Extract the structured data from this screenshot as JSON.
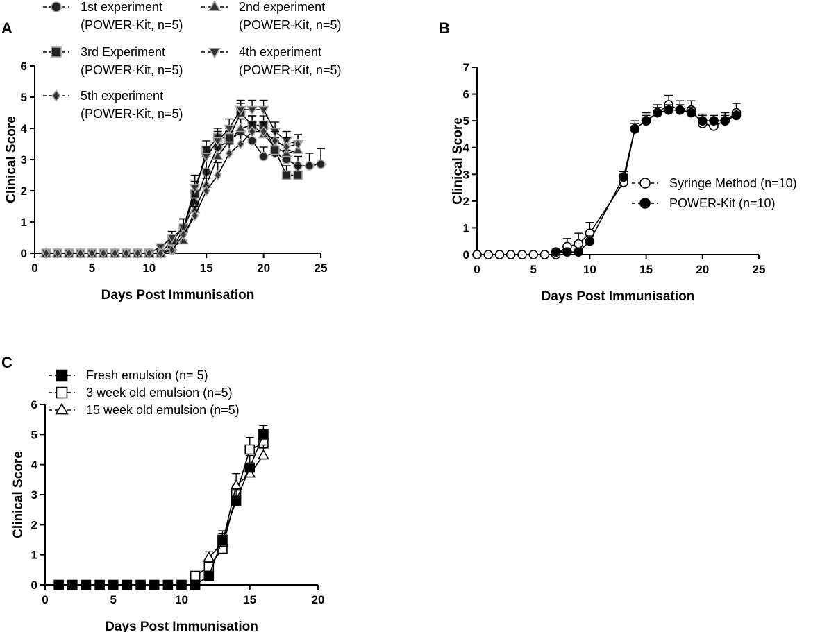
{
  "figure_caption": "",
  "chart_data": [
    {
      "panel": "A",
      "type": "line",
      "title": "",
      "xlabel": "Days Post Immunisation",
      "ylabel": "Clinical Score",
      "xlim": [
        0,
        25
      ],
      "ylim": [
        0,
        6
      ],
      "xticks": [
        0,
        5,
        10,
        15,
        20,
        25
      ],
      "yticks": [
        0,
        1,
        2,
        3,
        4,
        5,
        6
      ],
      "grid": false,
      "legend_position": "top-left",
      "series": [
        {
          "name": "1st experiment",
          "name2": "(POWER-Kit, n=5)",
          "marker": "circle",
          "fill": "#222222",
          "x": [
            1,
            2,
            3,
            4,
            5,
            6,
            7,
            8,
            9,
            10,
            11,
            12,
            13,
            14,
            15,
            16,
            17,
            18,
            19,
            20,
            21,
            22,
            23,
            24,
            25
          ],
          "values": [
            0,
            0,
            0,
            0,
            0,
            0,
            0,
            0,
            0,
            0,
            0,
            0.1,
            0.8,
            1.6,
            2.6,
            3.4,
            3.6,
            3.9,
            3.6,
            3.1,
            3.2,
            3.0,
            2.8,
            2.8,
            2.85
          ],
          "err": [
            0,
            0,
            0,
            0,
            0,
            0,
            0,
            0,
            0,
            0,
            0,
            0.1,
            0.3,
            0.4,
            0.5,
            0.4,
            0.3,
            0.4,
            0.3,
            0.3,
            0.4,
            0.3,
            0.3,
            0.4,
            0.5
          ]
        },
        {
          "name": "2nd experiment",
          "name2": "(POWER-Kit, n=5)",
          "marker": "triangle-up",
          "fill": "#333333",
          "x": [
            1,
            2,
            3,
            4,
            5,
            6,
            7,
            8,
            9,
            10,
            11,
            12,
            13,
            14,
            15,
            16,
            17,
            18,
            19,
            20,
            21,
            22,
            23
          ],
          "values": [
            0,
            0,
            0,
            0,
            0,
            0,
            0,
            0,
            0,
            0,
            0,
            0.2,
            0.4,
            1.4,
            2.2,
            3.1,
            3.6,
            4.0,
            4.1,
            3.8,
            3.4,
            3.2,
            3.3
          ],
          "err": [
            0,
            0,
            0,
            0,
            0,
            0,
            0,
            0,
            0,
            0,
            0,
            0.1,
            0.3,
            0.4,
            0.5,
            0.4,
            0.3,
            0.3,
            0.3,
            0.3,
            0.3,
            0.3,
            0.3
          ]
        },
        {
          "name": "3rd Experiment",
          "name2": "(POWER-Kit, n=5)",
          "marker": "square",
          "fill": "#222222",
          "x": [
            1,
            2,
            3,
            4,
            5,
            6,
            7,
            8,
            9,
            10,
            11,
            12,
            13,
            14,
            15,
            16,
            17,
            18,
            19,
            20,
            21,
            22,
            23
          ],
          "values": [
            0,
            0,
            0,
            0,
            0,
            0,
            0,
            0,
            0,
            0,
            0,
            0.4,
            0.8,
            1.9,
            3.3,
            3.7,
            3.7,
            4.5,
            4.1,
            4.1,
            3.3,
            2.5,
            2.5
          ],
          "err": [
            0,
            0,
            0,
            0,
            0,
            0,
            0,
            0,
            0,
            0,
            0,
            0.2,
            0.3,
            0.4,
            0.3,
            0.3,
            0.3,
            0.3,
            0.3,
            0.3,
            0.3,
            0.3,
            0.3
          ]
        },
        {
          "name": "4th experiment",
          "name2": "(POWER-Kit, n=5)",
          "marker": "triangle-down",
          "fill": "#333333",
          "x": [
            1,
            2,
            3,
            4,
            5,
            6,
            7,
            8,
            9,
            10,
            11,
            12,
            13,
            14,
            15,
            16,
            17,
            18,
            19,
            20,
            21,
            22,
            23
          ],
          "values": [
            0,
            0,
            0,
            0,
            0,
            0,
            0,
            0,
            0,
            0,
            0.2,
            0.5,
            0.8,
            2.1,
            3.1,
            3.6,
            4.0,
            4.6,
            4.6,
            4.6,
            3.9,
            3.6,
            3.5
          ],
          "err": [
            0,
            0,
            0,
            0,
            0,
            0,
            0,
            0,
            0,
            0,
            0.1,
            0.2,
            0.3,
            0.4,
            0.3,
            0.3,
            0.3,
            0.3,
            0.3,
            0.3,
            0.3,
            0.3,
            0.3
          ]
        },
        {
          "name": "5th experiment",
          "name2": "(POWER-Kit, n=5)",
          "marker": "diamond",
          "fill": "#333333",
          "x": [
            1,
            2,
            3,
            4,
            5,
            6,
            7,
            8,
            9,
            10,
            11,
            12,
            13,
            14,
            15,
            16,
            17,
            18,
            19,
            20,
            21,
            22,
            23
          ],
          "values": [
            0,
            0,
            0,
            0,
            0,
            0,
            0,
            0,
            0,
            0,
            0,
            0.1,
            0.6,
            1.2,
            2.0,
            2.5,
            3.2,
            3.5,
            3.9,
            3.9,
            3.6,
            3.4,
            3.5
          ],
          "err": [
            0,
            0,
            0,
            0,
            0,
            0,
            0,
            0,
            0,
            0,
            0,
            0.1,
            0.3,
            0.3,
            0.4,
            0.4,
            0.3,
            0.3,
            0.3,
            0.3,
            0.3,
            0.3,
            0.3
          ]
        }
      ]
    },
    {
      "panel": "B",
      "type": "line",
      "title": "",
      "xlabel": "Days Post Immunisation",
      "ylabel": "Clinical Score",
      "xlim": [
        0,
        25
      ],
      "ylim": [
        0,
        7
      ],
      "xticks": [
        0,
        5,
        10,
        15,
        20,
        25
      ],
      "yticks": [
        0,
        1,
        2,
        3,
        4,
        5,
        6,
        7
      ],
      "grid": false,
      "legend_position": "right",
      "series": [
        {
          "name": "POWER-Kit (n=10)",
          "marker": "circle",
          "fill": "#000000",
          "x": [
            7,
            8,
            9,
            10,
            13,
            14,
            15,
            16,
            17,
            18,
            19,
            20,
            21,
            22,
            23
          ],
          "values": [
            0.1,
            0.1,
            0.1,
            0.5,
            2.9,
            4.7,
            5.0,
            5.3,
            5.4,
            5.4,
            5.3,
            5.0,
            5.0,
            5.0,
            5.2
          ],
          "err": [
            0.1,
            0.1,
            0.1,
            0.2,
            0.2,
            0.2,
            0.2,
            0.2,
            0.2,
            0.2,
            0.2,
            0.2,
            0.2,
            0.2,
            0.2
          ]
        },
        {
          "name": "Syringe Method (n=10)",
          "marker": "circle",
          "fill": "#ffffff",
          "x": [
            0,
            1,
            2,
            3,
            4,
            5,
            6,
            7,
            8,
            9,
            10,
            13,
            14,
            15,
            16,
            17,
            18,
            19,
            20,
            21,
            22,
            23
          ],
          "values": [
            0,
            0,
            0,
            0,
            0,
            0,
            0,
            0,
            0.3,
            0.4,
            0.8,
            2.7,
            4.7,
            5.0,
            5.3,
            5.6,
            5.4,
            5.4,
            4.9,
            4.8,
            5.0,
            5.3
          ],
          "err": [
            0,
            0,
            0,
            0,
            0,
            0,
            0,
            0,
            0.3,
            0.4,
            0.4,
            0.3,
            0.3,
            0.3,
            0.3,
            0.35,
            0.35,
            0.35,
            0.35,
            0.3,
            0.3,
            0.35
          ]
        }
      ]
    },
    {
      "panel": "C",
      "type": "line",
      "title": "",
      "xlabel": "Days Post Immunisation",
      "ylabel": "Clinical Score",
      "xlim": [
        0,
        20
      ],
      "ylim": [
        0,
        6
      ],
      "xticks": [
        0,
        5,
        10,
        15,
        20
      ],
      "yticks": [
        0,
        1,
        2,
        3,
        4,
        5,
        6
      ],
      "grid": false,
      "legend_position": "top-left",
      "series": [
        {
          "name": "3 week old emulsion (n=5)",
          "marker": "square",
          "fill": "#ffffff",
          "x": [
            11,
            12,
            13,
            14,
            15,
            16
          ],
          "values": [
            0.3,
            0.6,
            1.2,
            3.0,
            4.5,
            4.7
          ],
          "err": [
            0,
            0.2,
            0.3,
            0.3,
            0.4,
            0.3
          ]
        },
        {
          "name": "15 week old emulsion (n=5)",
          "marker": "triangle-up",
          "fill": "#ffffff",
          "x": [
            12,
            13,
            14,
            15,
            16
          ],
          "values": [
            0.9,
            1.4,
            3.3,
            3.7,
            4.3
          ],
          "err": [
            0.2,
            0.3,
            0.4,
            0.3,
            0.35
          ]
        },
        {
          "name": "Fresh emulsion (n= 5)",
          "marker": "square",
          "fill": "#000000",
          "x": [
            1,
            2,
            3,
            4,
            5,
            6,
            7,
            8,
            9,
            10,
            11,
            12,
            13,
            14,
            15,
            16
          ],
          "values": [
            0,
            0,
            0,
            0,
            0,
            0,
            0,
            0,
            0,
            0,
            0,
            0.3,
            1.5,
            2.8,
            3.9,
            5.0
          ],
          "err": [
            0,
            0,
            0,
            0,
            0,
            0,
            0,
            0,
            0,
            0,
            0,
            0.1,
            0.3,
            0.4,
            0.4,
            0.3
          ]
        }
      ]
    }
  ]
}
